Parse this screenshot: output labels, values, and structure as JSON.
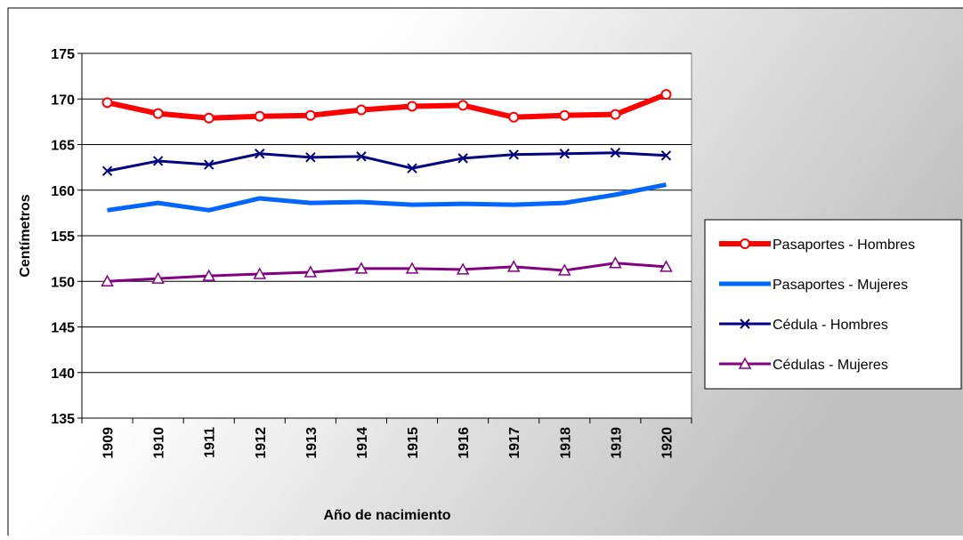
{
  "chart_data": {
    "type": "line",
    "x_label": "Año de nacimiento",
    "y_label": "Centímetros",
    "categories": [
      "1909",
      "1910",
      "1911",
      "1912",
      "1913",
      "1914",
      "1915",
      "1916",
      "1917",
      "1918",
      "1919",
      "1920"
    ],
    "series": [
      {
        "name": "Pasaportes - Hombres",
        "color": "#ff0000",
        "marker": "circle",
        "values": [
          169.6,
          168.4,
          167.9,
          168.1,
          168.2,
          168.8,
          169.2,
          169.3,
          168.0,
          168.2,
          168.3,
          170.5
        ]
      },
      {
        "name": "Pasaportes - Mujeres",
        "color": "#0066ff",
        "values": [
          157.8,
          158.6,
          157.8,
          159.1,
          158.6,
          158.7,
          158.4,
          158.5,
          158.4,
          158.6,
          159.5,
          160.6
        ]
      },
      {
        "name": "Cédula - Hombres",
        "color": "#000080",
        "marker": "x",
        "values": [
          162.1,
          163.2,
          162.8,
          164.0,
          163.6,
          163.7,
          162.4,
          163.5,
          163.9,
          164.0,
          164.1,
          163.8
        ]
      },
      {
        "name": "Cédulas - Mujeres",
        "color": "#800080",
        "marker": "triangle",
        "values": [
          150.0,
          150.3,
          150.6,
          150.8,
          151.0,
          151.4,
          151.4,
          151.3,
          151.6,
          151.2,
          152.0,
          151.6
        ]
      }
    ],
    "ylim": [
      135,
      175
    ],
    "yticks": [
      135,
      140,
      145,
      150,
      155,
      160,
      165,
      170,
      175
    ],
    "grid": true,
    "legend": "right"
  }
}
